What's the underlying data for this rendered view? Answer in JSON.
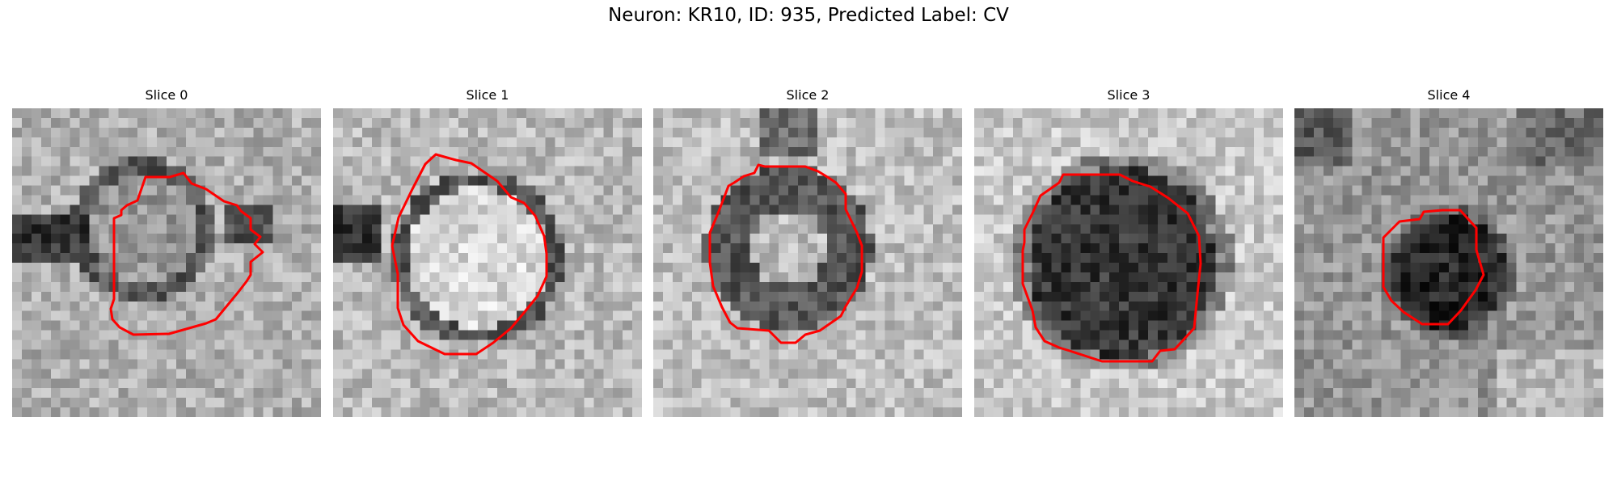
{
  "figure": {
    "title": "Neuron: KR10, ID: 935, Predicted Label: CV"
  },
  "contour_color": "#ff0000",
  "colormap": "gray",
  "panels": [
    {
      "title": "Slice 0"
    },
    {
      "title": "Slice 1"
    },
    {
      "title": "Slice 2"
    },
    {
      "title": "Slice 3"
    },
    {
      "title": "Slice 4"
    }
  ]
}
